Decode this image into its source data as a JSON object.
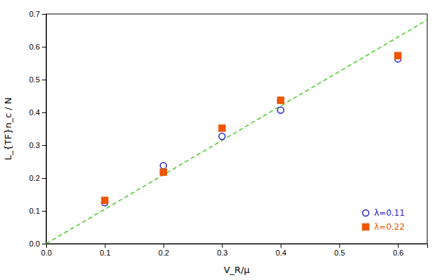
{
  "chart_data": {
    "type": "scatter",
    "title": "",
    "xlabel": "V_R/μ",
    "ylabel": "L_{TF}n_c / N",
    "xlim": [
      0,
      0.65
    ],
    "ylim": [
      0,
      0.7
    ],
    "xticks": [
      {
        "value": 0,
        "label": "0.0"
      },
      0.1,
      0.2,
      0.3,
      0.4,
      0.5,
      0.6
    ],
    "yticks": [
      {
        "value": 0,
        "label": "0.0"
      },
      0.1,
      0.2,
      0.3,
      0.4,
      0.5,
      0.6,
      0.7
    ],
    "grid": false,
    "legend": "lower right",
    "series": [
      {
        "type": "line",
        "line_style": "dashed",
        "color": "#44cc22",
        "x": [
          0,
          0.65
        ],
        "values": [
          0,
          0.682
        ]
      },
      {
        "type": "scatter",
        "name": "λ=0.11",
        "color": "#2222cc",
        "marker": "circle-open",
        "x": [
          0.1,
          0.2,
          0.3,
          0.4,
          0.6
        ],
        "values": [
          0.125,
          0.238,
          0.327,
          0.407,
          0.563
        ]
      },
      {
        "type": "scatter",
        "name": "λ=0.22",
        "color": "#ee5500",
        "marker": "square",
        "x": [
          0.1,
          0.2,
          0.3,
          0.4,
          0.6
        ],
        "values": [
          0.132,
          0.218,
          0.352,
          0.437,
          0.573
        ]
      }
    ]
  }
}
